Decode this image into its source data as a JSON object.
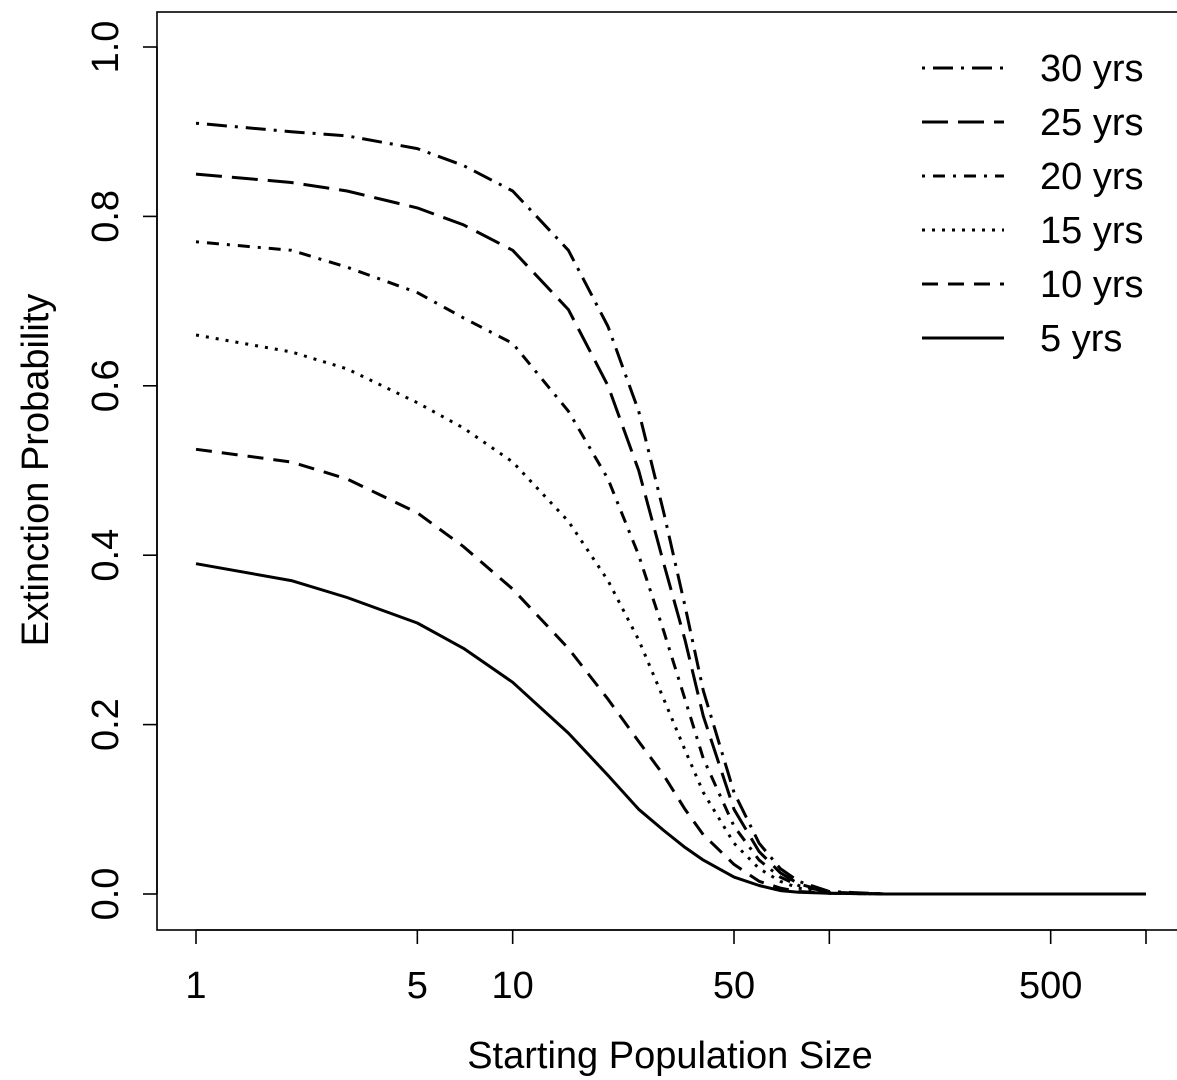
{
  "chart_data": {
    "type": "line",
    "title": "",
    "xlabel": "Starting Population Size",
    "ylabel": "Extinction Probability",
    "x_scale": "log",
    "xlim": [
      1,
      1000
    ],
    "ylim": [
      0,
      1
    ],
    "x_ticks": [
      1,
      5,
      10,
      50,
      100,
      500,
      1000
    ],
    "x_tick_labels": [
      "1",
      "5",
      "10",
      "50",
      "",
      "500",
      ""
    ],
    "y_ticks": [
      0,
      0.2,
      0.4,
      0.6,
      0.8,
      1.0
    ],
    "y_tick_labels": [
      "0.0",
      "0.2",
      "0.4",
      "0.6",
      "0.8",
      "1.0"
    ],
    "grid": false,
    "legend_position": "top-right",
    "x": [
      1,
      2,
      3,
      5,
      7,
      10,
      15,
      20,
      25,
      30,
      35,
      40,
      50,
      60,
      70,
      80,
      100,
      150,
      1000
    ],
    "series": [
      {
        "name": "30 yrs",
        "line_style": "dashdot-long",
        "values": [
          0.91,
          0.9,
          0.895,
          0.88,
          0.86,
          0.83,
          0.76,
          0.67,
          0.57,
          0.45,
          0.34,
          0.24,
          0.12,
          0.06,
          0.03,
          0.015,
          0.003,
          0,
          0
        ]
      },
      {
        "name": "25 yrs",
        "line_style": "longdash",
        "values": [
          0.85,
          0.84,
          0.83,
          0.81,
          0.79,
          0.76,
          0.69,
          0.6,
          0.5,
          0.39,
          0.3,
          0.21,
          0.1,
          0.05,
          0.025,
          0.012,
          0.002,
          0,
          0
        ]
      },
      {
        "name": "20 yrs",
        "line_style": "dashdot",
        "values": [
          0.77,
          0.76,
          0.74,
          0.71,
          0.68,
          0.65,
          0.57,
          0.49,
          0.4,
          0.31,
          0.23,
          0.16,
          0.08,
          0.04,
          0.02,
          0.01,
          0.002,
          0,
          0
        ]
      },
      {
        "name": "15 yrs",
        "line_style": "dotted",
        "values": [
          0.66,
          0.64,
          0.62,
          0.58,
          0.55,
          0.51,
          0.44,
          0.37,
          0.3,
          0.23,
          0.17,
          0.12,
          0.06,
          0.03,
          0.015,
          0.007,
          0.001,
          0,
          0
        ]
      },
      {
        "name": "10 yrs",
        "line_style": "dashed",
        "values": [
          0.525,
          0.51,
          0.49,
          0.45,
          0.41,
          0.36,
          0.29,
          0.23,
          0.18,
          0.14,
          0.1,
          0.07,
          0.035,
          0.015,
          0.007,
          0.003,
          0.001,
          0,
          0
        ]
      },
      {
        "name": "5 yrs",
        "line_style": "solid",
        "values": [
          0.39,
          0.37,
          0.35,
          0.32,
          0.29,
          0.25,
          0.19,
          0.14,
          0.1,
          0.075,
          0.055,
          0.04,
          0.02,
          0.01,
          0.004,
          0.002,
          0.001,
          0,
          0
        ]
      }
    ],
    "colors": {
      "line": "#000000",
      "background": "#ffffff"
    }
  }
}
